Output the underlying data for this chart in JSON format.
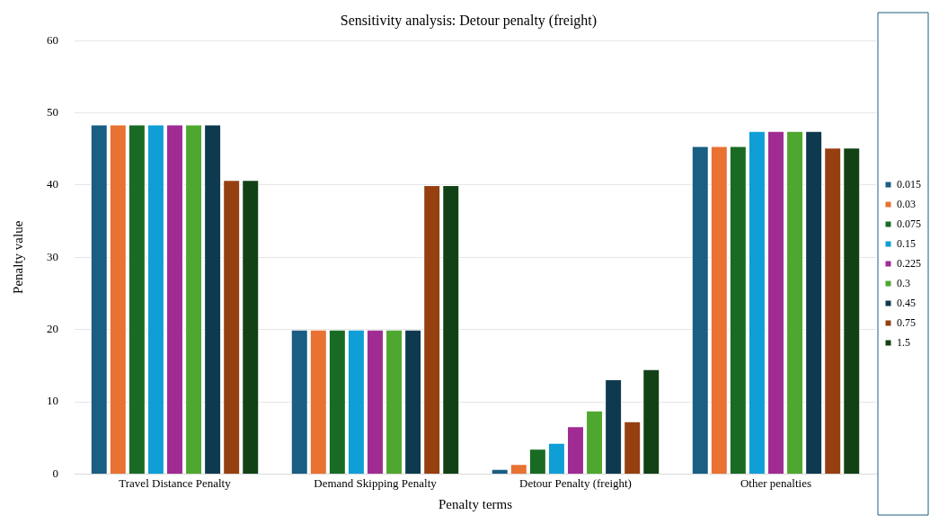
{
  "chart_data": {
    "type": "bar",
    "title": "Sensitivity analysis: Detour penalty (freight)",
    "xlabel": "Penalty terms",
    "ylabel": "Penalty value",
    "categories": [
      "Travel Distance Penalty",
      "Demand Skipping Penalty",
      "Detour Penalty (freight)",
      "Other penalties"
    ],
    "series": [
      {
        "name": "0.015",
        "color": "#1a5e83",
        "values": [
          48.4,
          20,
          0.7,
          45.4
        ]
      },
      {
        "name": "0.03",
        "color": "#e97132",
        "values": [
          48.4,
          20,
          1.4,
          45.4
        ]
      },
      {
        "name": "0.075",
        "color": "#196b24",
        "values": [
          48.4,
          20,
          3.5,
          45.4
        ]
      },
      {
        "name": "0.15",
        "color": "#0f9ed5",
        "values": [
          48.4,
          20,
          4.3,
          47.5
        ]
      },
      {
        "name": "0.225",
        "color": "#a02b93",
        "values": [
          48.4,
          20,
          6.6,
          47.5
        ]
      },
      {
        "name": "0.3",
        "color": "#4ea72e",
        "values": [
          48.4,
          20,
          8.8,
          47.5
        ]
      },
      {
        "name": "0.45",
        "color": "#0e3a4f",
        "values": [
          48.4,
          20,
          13.1,
          47.5
        ]
      },
      {
        "name": "0.75",
        "color": "#964012",
        "values": [
          40.7,
          40,
          7.3,
          45.2
        ]
      },
      {
        "name": "1.5",
        "color": "#124116",
        "values": [
          40.7,
          40,
          14.5,
          45.2
        ]
      }
    ],
    "ylim": [
      0,
      60
    ],
    "yticks": [
      0,
      10,
      20,
      30,
      40,
      50,
      60
    ],
    "grid": "y",
    "legend": "right"
  }
}
